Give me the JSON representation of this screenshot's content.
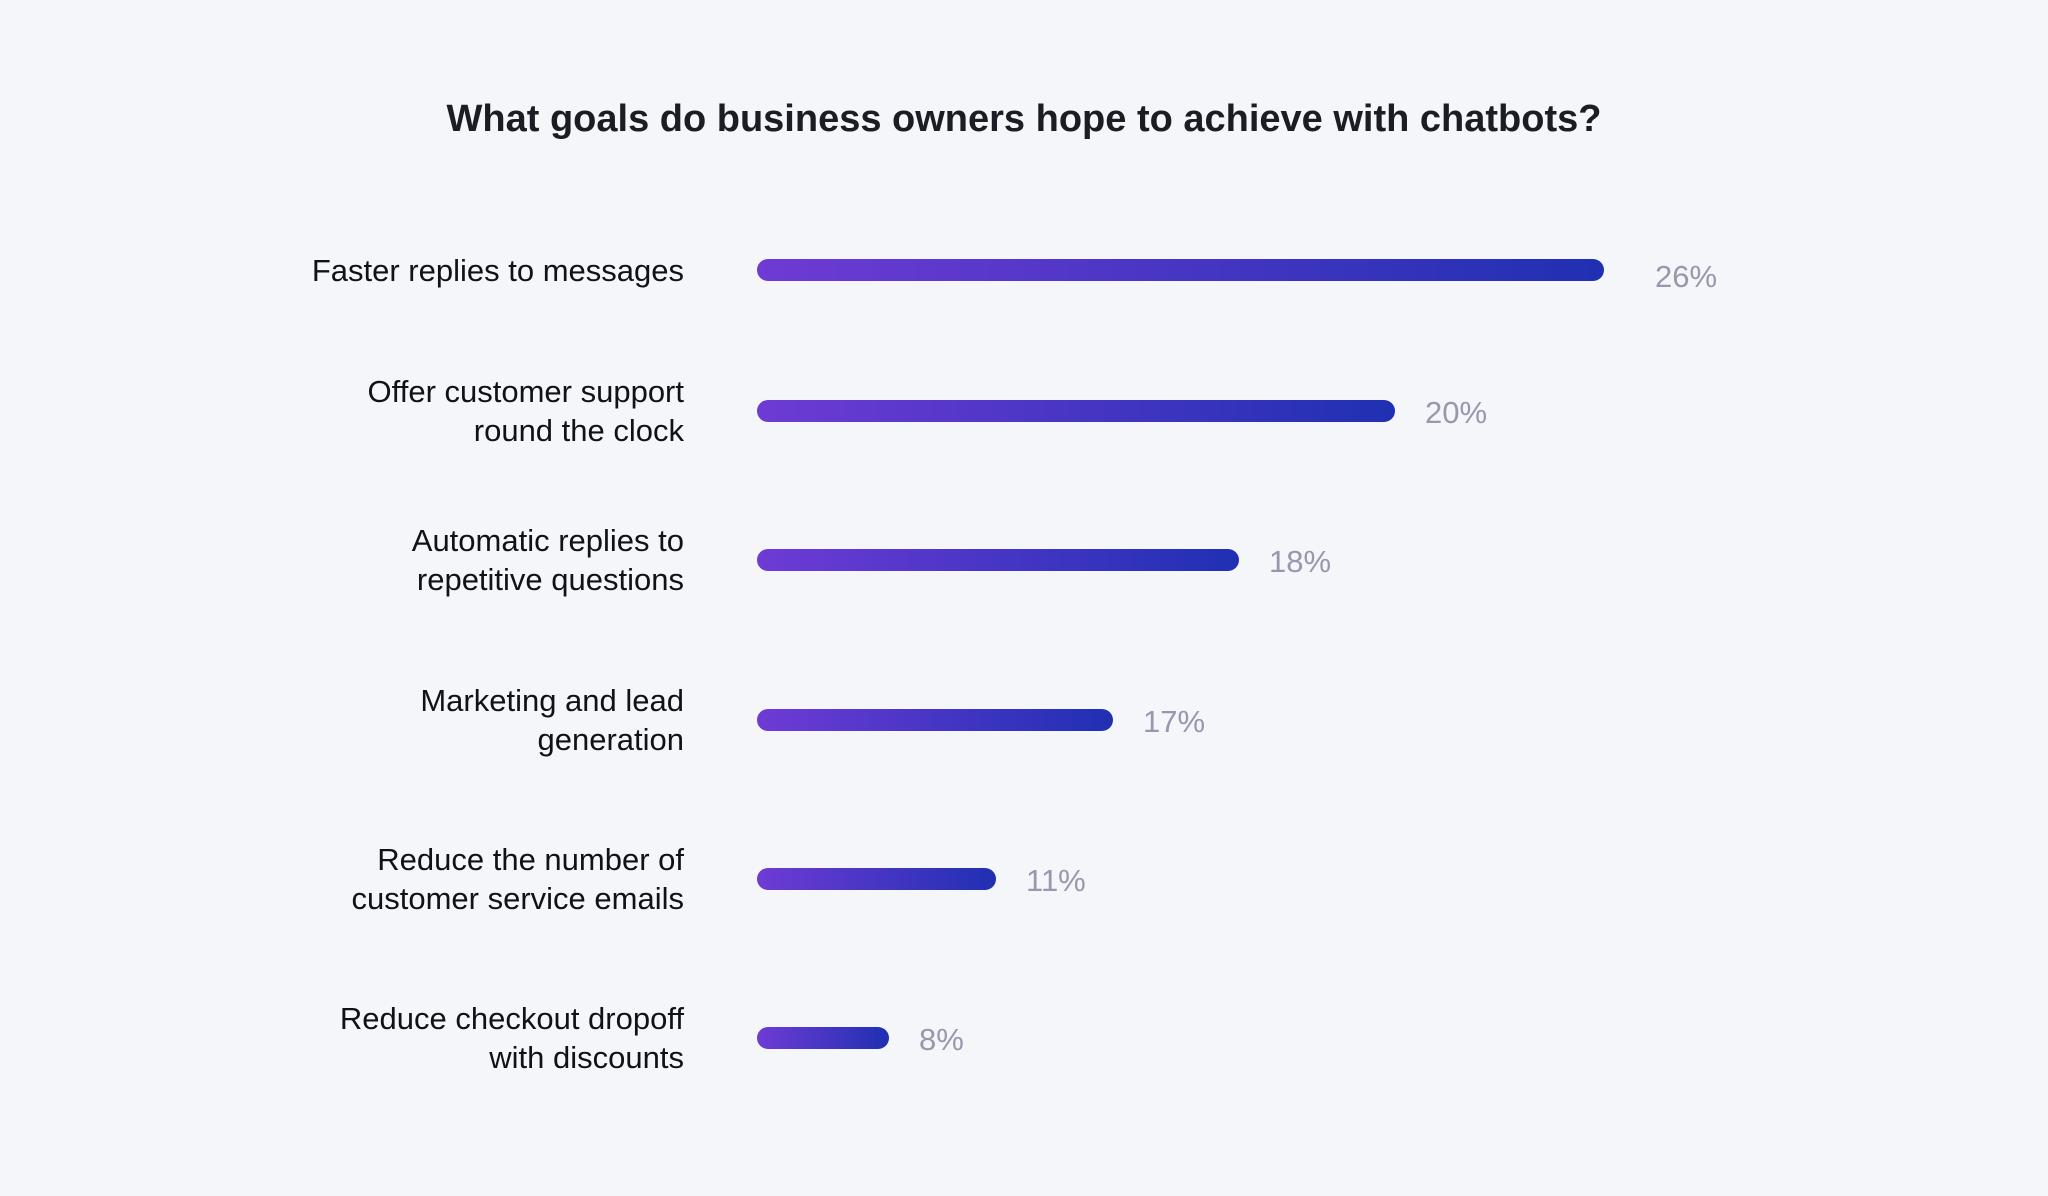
{
  "chart_data": {
    "type": "bar",
    "orientation": "horizontal",
    "title": "What goals do business owners hope to achieve with chatbots?",
    "categories": [
      "Faster replies to messages",
      "Offer customer support\nround the clock",
      "Automatic replies to\nrepetitive questions",
      "Marketing and lead\ngeneration",
      "Reduce the number of\ncustomer service emails",
      "Reduce checkout dropoff\nwith discounts"
    ],
    "values": [
      26,
      20,
      18,
      17,
      11,
      8
    ],
    "value_labels": [
      "26%",
      "20%",
      "18%",
      "17%",
      "11%",
      "8%"
    ],
    "xlabel": "",
    "ylabel": "",
    "grid": false,
    "colors": {
      "bar_start": "#6e3bd4",
      "bar_end": "#2030b2",
      "value_text": "#9698ad",
      "background": "#f5f6f9"
    }
  }
}
